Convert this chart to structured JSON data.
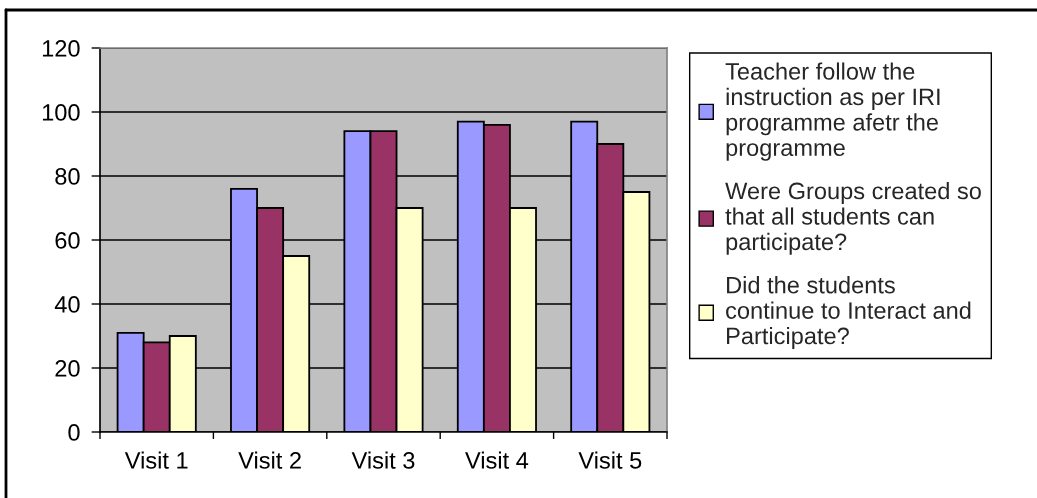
{
  "chart_data": {
    "type": "bar",
    "categories": [
      "Visit 1",
      "Visit 2",
      "Visit 3",
      "Visit 4",
      "Visit 5"
    ],
    "series": [
      {
        "name": "Teacher follow the\ninstruction as per IRI\nprogramme afetr the\nprogramme",
        "color": "#9999ff",
        "values": [
          31,
          76,
          94,
          97,
          97
        ]
      },
      {
        "name": "Were Groups created so\nthat all students can\nparticipate?",
        "color": "#993366",
        "values": [
          28,
          70,
          94,
          96,
          90
        ]
      },
      {
        "name": "Did the students\ncontinue to Interact and\nParticipate?",
        "color": "#ffffcc",
        "values": [
          30,
          55,
          70,
          70,
          75
        ]
      }
    ],
    "ylim": [
      0,
      120
    ],
    "yticks": [
      0,
      20,
      40,
      60,
      80,
      100,
      120
    ],
    "grid": "y",
    "legend": "right"
  }
}
